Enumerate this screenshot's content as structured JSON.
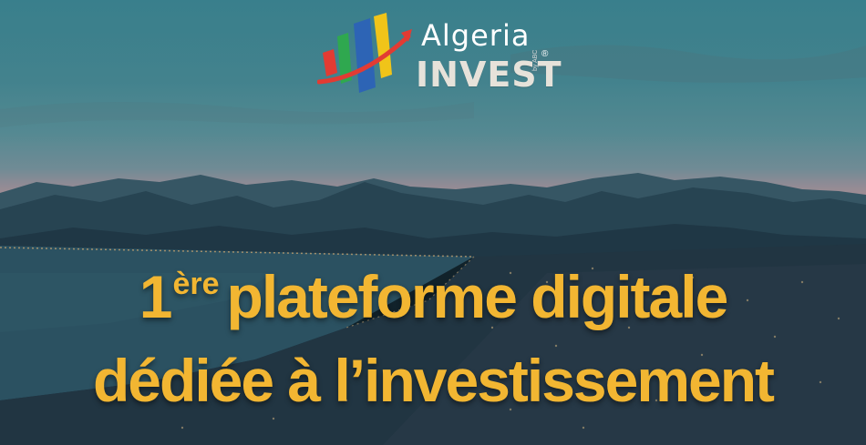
{
  "logo": {
    "word_top": "Algeria",
    "word_bottom": "INVEST",
    "registered": "®",
    "tagline": "by ABC",
    "colors": {
      "red": "#e23b33",
      "green": "#2fa84f",
      "blue": "#2d64b5",
      "yellow": "#f0c419"
    },
    "icon": "bar-chart-arrow-icon"
  },
  "headline": {
    "line1_number": "1",
    "line1_superscript": "ère",
    "line1_text": "plateforme digitale",
    "line2_text": "dédiée à l’investissement",
    "color": "#f2b632"
  }
}
